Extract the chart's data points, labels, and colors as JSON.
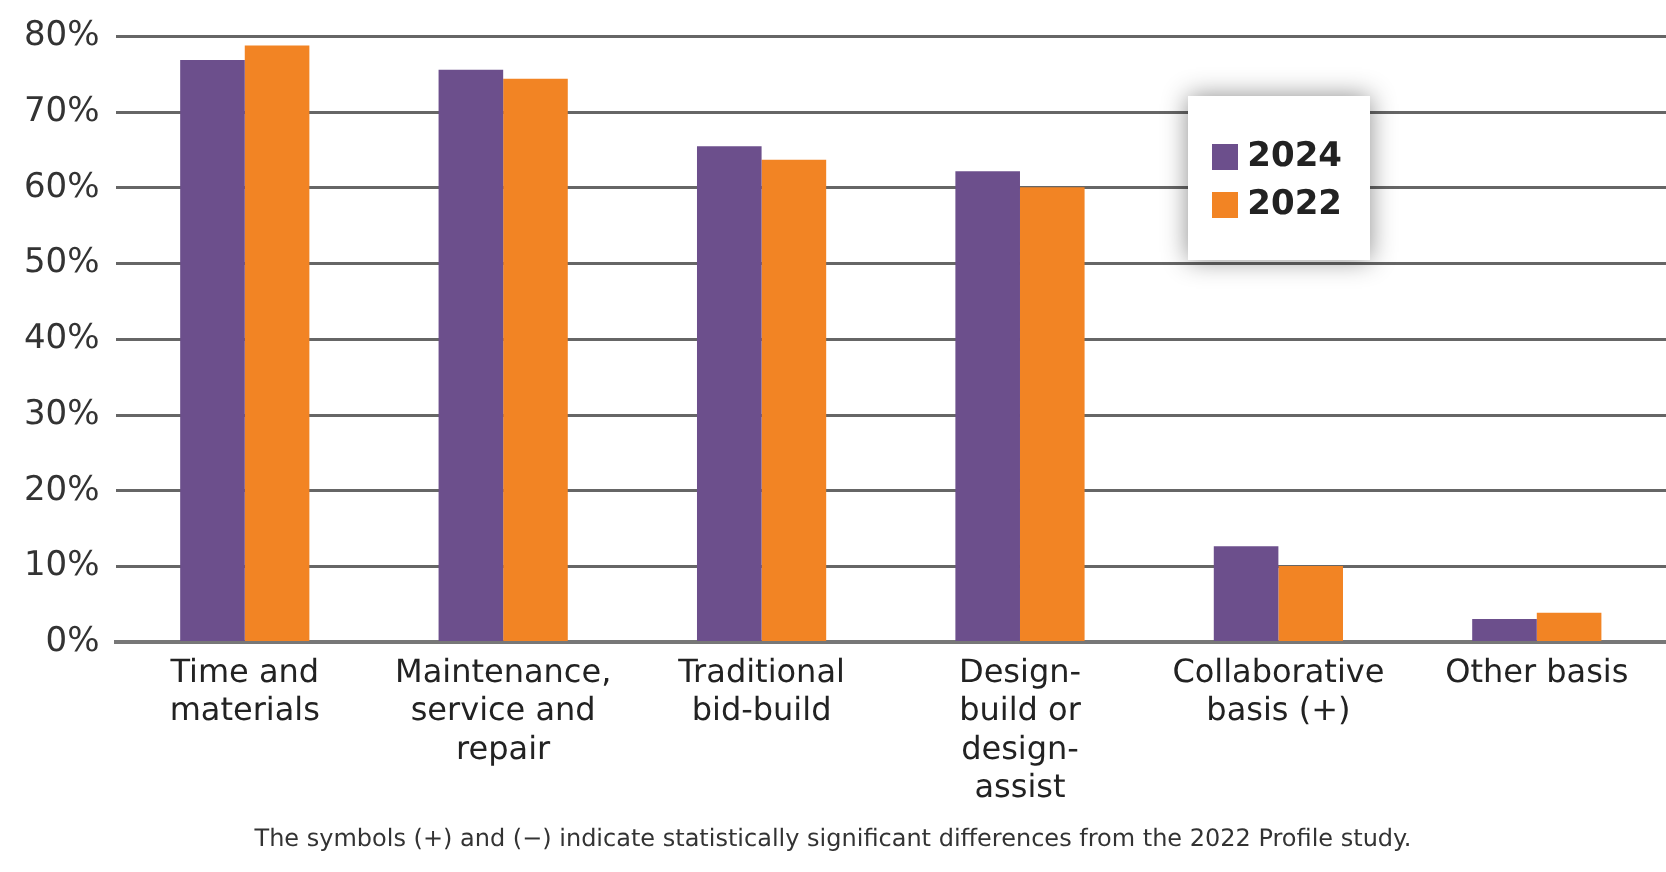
{
  "chart_data": {
    "type": "bar",
    "categories": [
      "Time and materials",
      "Maintenance, service and repair",
      "Traditional bid-build",
      "Design-build or design-assist",
      "Collaborative basis (+)",
      "Other basis"
    ],
    "series": [
      {
        "name": "2024",
        "color": "#6c4f8c",
        "values": [
          76.9,
          75.6,
          65.5,
          62.2,
          12.7,
          3.1
        ]
      },
      {
        "name": "2022",
        "color": "#f28424",
        "values": [
          78.8,
          74.4,
          63.7,
          60.1,
          10.1,
          3.9
        ]
      }
    ],
    "ylim": [
      0,
      80
    ],
    "yticks": [
      {
        "value": 0,
        "label": "0%"
      },
      {
        "value": 10,
        "label": "10%"
      },
      {
        "value": 20,
        "label": "20%"
      },
      {
        "value": 30,
        "label": "30%"
      },
      {
        "value": 40,
        "label": "40%"
      },
      {
        "value": 50,
        "label": "50%"
      },
      {
        "value": 60,
        "label": "60%"
      },
      {
        "value": 70,
        "label": "70%"
      },
      {
        "value": 80,
        "label": "80%"
      }
    ],
    "grid": "y",
    "legend": "top right",
    "annotations": [
      "The symbols (+) and (−) indicate statistically significant differences from the 2022 Profile study."
    ]
  }
}
